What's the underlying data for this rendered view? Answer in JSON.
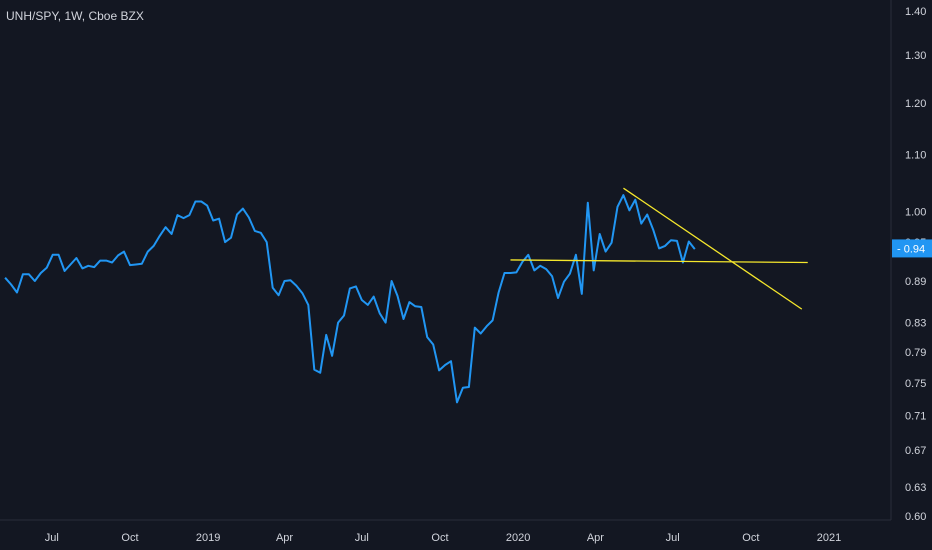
{
  "header": {
    "symbol_title": "UNH/SPY, 1W, Cboe BZX"
  },
  "colors": {
    "background": "#131722",
    "line": "#2196f3",
    "trendline": "#f5e72c",
    "axis_text": "#d1d4dc",
    "price_tag_bg": "#2196f3",
    "price_tag_text": "#ffffff",
    "axis_border": "#2a2e39"
  },
  "chart_data": {
    "type": "line",
    "title": "UNH/SPY, 1W, Cboe BZX",
    "xlabel": "",
    "ylabel": "",
    "y_scale": "log",
    "ylim": [
      0.6,
      1.4
    ],
    "xlim": [
      "2018-05-01",
      "2021-03-15"
    ],
    "grid": false,
    "x_ticks": [
      {
        "date": "2018-07-01",
        "label": "Jul"
      },
      {
        "date": "2018-10-01",
        "label": "Oct"
      },
      {
        "date": "2019-01-01",
        "label": "2019"
      },
      {
        "date": "2019-04-01",
        "label": "Apr"
      },
      {
        "date": "2019-07-01",
        "label": "Jul"
      },
      {
        "date": "2019-10-01",
        "label": "Oct"
      },
      {
        "date": "2020-01-01",
        "label": "2020"
      },
      {
        "date": "2020-04-01",
        "label": "Apr"
      },
      {
        "date": "2020-07-01",
        "label": "Jul"
      },
      {
        "date": "2020-10-01",
        "label": "Oct"
      },
      {
        "date": "2021-01-01",
        "label": "2021"
      }
    ],
    "y_ticks": [
      1.4,
      1.3,
      1.2,
      1.1,
      1.0,
      0.95,
      0.89,
      0.83,
      0.79,
      0.75,
      0.71,
      0.67,
      0.63,
      0.6
    ],
    "y_tick_labels": [
      "1.40",
      "1.30",
      "1.20",
      "1.10",
      "1.00",
      "0.95",
      "0.89",
      "0.83",
      "0.79",
      "0.75",
      "0.71",
      "0.67",
      "0.63",
      "0.60"
    ],
    "last_value": 0.94,
    "last_value_label": "0.94",
    "series": [
      {
        "points": [
          [
            "2018-05-07",
            0.895
          ],
          [
            "2018-05-14",
            0.885
          ],
          [
            "2018-05-21",
            0.873
          ],
          [
            "2018-05-28",
            0.9
          ],
          [
            "2018-06-04",
            0.9
          ],
          [
            "2018-06-11",
            0.89
          ],
          [
            "2018-06-18",
            0.902
          ],
          [
            "2018-06-25",
            0.91
          ],
          [
            "2018-07-02",
            0.93
          ],
          [
            "2018-07-09",
            0.93
          ],
          [
            "2018-07-16",
            0.905
          ],
          [
            "2018-07-23",
            0.915
          ],
          [
            "2018-07-30",
            0.925
          ],
          [
            "2018-08-06",
            0.909
          ],
          [
            "2018-08-13",
            0.913
          ],
          [
            "2018-08-20",
            0.911
          ],
          [
            "2018-08-27",
            0.921
          ],
          [
            "2018-09-03",
            0.921
          ],
          [
            "2018-09-10",
            0.918
          ],
          [
            "2018-09-17",
            0.929
          ],
          [
            "2018-09-24",
            0.935
          ],
          [
            "2018-10-01",
            0.914
          ],
          [
            "2018-10-08",
            0.915
          ],
          [
            "2018-10-15",
            0.916
          ],
          [
            "2018-10-22",
            0.935
          ],
          [
            "2018-10-29",
            0.944
          ],
          [
            "2018-11-05",
            0.96
          ],
          [
            "2018-11-12",
            0.974
          ],
          [
            "2018-11-19",
            0.963
          ],
          [
            "2018-11-26",
            0.994
          ],
          [
            "2018-12-03",
            0.989
          ],
          [
            "2018-12-10",
            0.994
          ],
          [
            "2018-12-17",
            1.017
          ],
          [
            "2018-12-24",
            1.017
          ],
          [
            "2018-12-31",
            1.01
          ],
          [
            "2019-01-07",
            0.985
          ],
          [
            "2019-01-14",
            0.988
          ],
          [
            "2019-01-21",
            0.95
          ],
          [
            "2019-01-28",
            0.957
          ],
          [
            "2019-02-04",
            0.995
          ],
          [
            "2019-02-11",
            1.005
          ],
          [
            "2019-02-18",
            0.99
          ],
          [
            "2019-02-25",
            0.968
          ],
          [
            "2019-03-04",
            0.965
          ],
          [
            "2019-03-11",
            0.95
          ],
          [
            "2019-03-18",
            0.88
          ],
          [
            "2019-03-25",
            0.869
          ],
          [
            "2019-04-01",
            0.89
          ],
          [
            "2019-04-08",
            0.891
          ],
          [
            "2019-04-15",
            0.883
          ],
          [
            "2019-04-22",
            0.872
          ],
          [
            "2019-04-29",
            0.855
          ],
          [
            "2019-05-06",
            0.767
          ],
          [
            "2019-05-13",
            0.763
          ],
          [
            "2019-05-20",
            0.813
          ],
          [
            "2019-05-27",
            0.785
          ],
          [
            "2019-06-03",
            0.83
          ],
          [
            "2019-06-10",
            0.84
          ],
          [
            "2019-06-17",
            0.879
          ],
          [
            "2019-06-24",
            0.882
          ],
          [
            "2019-07-01",
            0.862
          ],
          [
            "2019-07-08",
            0.855
          ],
          [
            "2019-07-15",
            0.867
          ],
          [
            "2019-07-22",
            0.843
          ],
          [
            "2019-07-29",
            0.83
          ],
          [
            "2019-08-05",
            0.89
          ],
          [
            "2019-08-12",
            0.868
          ],
          [
            "2019-08-19",
            0.835
          ],
          [
            "2019-08-26",
            0.859
          ],
          [
            "2019-09-02",
            0.853
          ],
          [
            "2019-09-09",
            0.852
          ],
          [
            "2019-09-16",
            0.81
          ],
          [
            "2019-09-23",
            0.8
          ],
          [
            "2019-09-30",
            0.766
          ],
          [
            "2019-10-07",
            0.773
          ],
          [
            "2019-10-14",
            0.778
          ],
          [
            "2019-10-21",
            0.726
          ],
          [
            "2019-10-28",
            0.744
          ],
          [
            "2019-11-04",
            0.745
          ],
          [
            "2019-11-11",
            0.823
          ],
          [
            "2019-11-18",
            0.815
          ],
          [
            "2019-11-25",
            0.825
          ],
          [
            "2019-12-02",
            0.833
          ],
          [
            "2019-12-09",
            0.873
          ],
          [
            "2019-12-16",
            0.902
          ],
          [
            "2019-12-23",
            0.902
          ],
          [
            "2019-12-30",
            0.903
          ],
          [
            "2020-01-06",
            0.919
          ],
          [
            "2020-01-13",
            0.93
          ],
          [
            "2020-01-20",
            0.906
          ],
          [
            "2020-01-27",
            0.913
          ],
          [
            "2020-02-03",
            0.908
          ],
          [
            "2020-02-10",
            0.897
          ],
          [
            "2020-02-17",
            0.865
          ],
          [
            "2020-02-24",
            0.889
          ],
          [
            "2020-03-02",
            0.901
          ],
          [
            "2020-03-09",
            0.93
          ],
          [
            "2020-03-16",
            0.871
          ],
          [
            "2020-03-23",
            1.015
          ],
          [
            "2020-03-30",
            0.906
          ],
          [
            "2020-04-06",
            0.963
          ],
          [
            "2020-04-13",
            0.935
          ],
          [
            "2020-04-20",
            0.949
          ],
          [
            "2020-04-27",
            1.008
          ],
          [
            "2020-05-04",
            1.028
          ],
          [
            "2020-05-11",
            1.002
          ],
          [
            "2020-05-18",
            1.02
          ],
          [
            "2020-05-25",
            0.98
          ],
          [
            "2020-06-01",
            0.995
          ],
          [
            "2020-06-08",
            0.97
          ],
          [
            "2020-06-15",
            0.94
          ],
          [
            "2020-06-22",
            0.944
          ],
          [
            "2020-06-29",
            0.953
          ],
          [
            "2020-07-06",
            0.952
          ],
          [
            "2020-07-13",
            0.918
          ],
          [
            "2020-07-20",
            0.951
          ],
          [
            "2020-07-27",
            0.939
          ]
        ]
      }
    ],
    "trendlines": [
      {
        "start": [
          "2019-12-23",
          0.922
        ],
        "end": [
          "2020-12-07",
          0.918
        ]
      },
      {
        "start": [
          "2020-05-04",
          1.04
        ],
        "end": [
          "2020-11-30",
          0.849
        ]
      }
    ]
  }
}
